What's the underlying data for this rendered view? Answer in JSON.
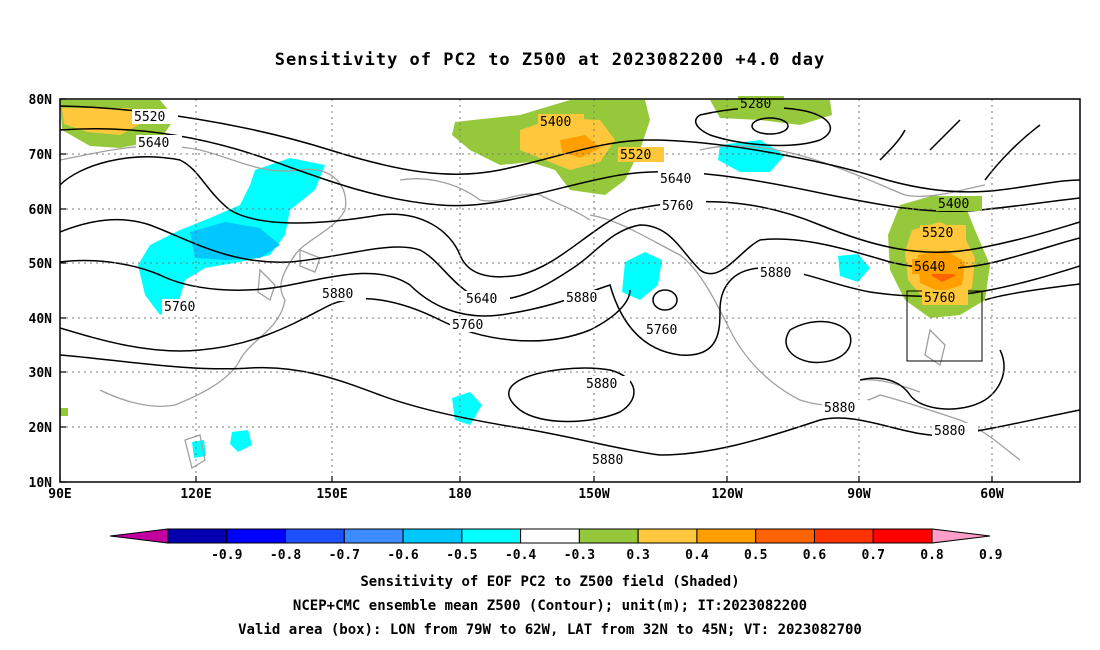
{
  "title": "Sensitivity of PC2 to Z500 at 2023082200 +4.0 day",
  "lat_labels": [
    "80N",
    "70N",
    "60N",
    "50N",
    "40N",
    "30N",
    "20N",
    "10N"
  ],
  "lon_labels": [
    "90E",
    "120E",
    "150E",
    "180",
    "150W",
    "120W",
    "90W",
    "60W"
  ],
  "contour_labels": {
    "c5280": "5280",
    "c5400a": "5400",
    "c5400b": "5400",
    "c5520a": "5520",
    "c5520b": "5520",
    "c5520c": "5520",
    "c5640a": "5640",
    "c5640b": "5640",
    "c5640c": "5640",
    "c5640d": "5640",
    "c5760a": "5760",
    "c5760b": "5760",
    "c5760c": "5760",
    "c5760d": "5760",
    "c5760e": "5760",
    "c5880a": "5880",
    "c5880b": "5880",
    "c5880c": "5880",
    "c5880d": "5880",
    "c5880e": "5880",
    "c5880f": "5880",
    "c5880g": "5880"
  },
  "colorbar": {
    "labels": [
      "-0.9",
      "-0.8",
      "-0.7",
      "-0.6",
      "-0.5",
      "-0.4",
      "-0.3",
      "0.3",
      "0.4",
      "0.5",
      "0.6",
      "0.7",
      "0.8",
      "0.9"
    ],
    "colors": [
      "#c000a0",
      "#0000b0",
      "#0000ff",
      "#1e50ff",
      "#3c8cff",
      "#00c8ff",
      "#00ffff",
      "#ffffff",
      "#96c83c",
      "#ffc83c",
      "#ffa000",
      "#ff6400",
      "#ff3200",
      "#ff0000",
      "#ff9ecb"
    ]
  },
  "captions": {
    "line1": "Sensitivity of EOF PC2 to Z500 field (Shaded)",
    "line2": "NCEP+CMC ensemble mean Z500 (Contour); unit(m); IT:2023082200",
    "line3": "Valid area (box): LON from 79W to 62W, LAT from 32N to 45N; VT: 2023082700"
  }
}
